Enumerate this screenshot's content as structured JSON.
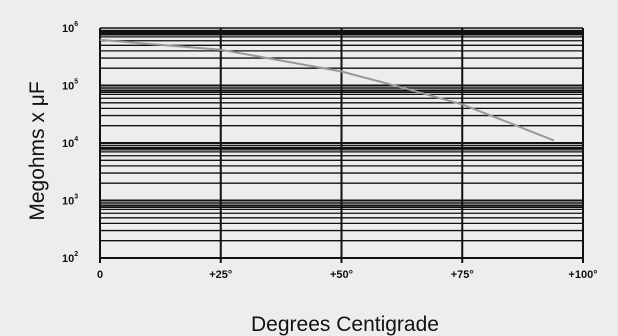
{
  "chart_data": {
    "type": "line",
    "title": "",
    "xlabel": "Degrees Centigrade",
    "ylabel": "Megohms x μF",
    "x_ticks": [
      {
        "value": 0,
        "label": "0"
      },
      {
        "value": 25,
        "label": "+25°"
      },
      {
        "value": 50,
        "label": "+50°"
      },
      {
        "value": 75,
        "label": "+75°"
      },
      {
        "value": 100,
        "label": "+100°"
      }
    ],
    "y_ticks": [
      {
        "value": 100,
        "base": "10",
        "exp": "2"
      },
      {
        "value": 1000,
        "base": "10",
        "exp": "3"
      },
      {
        "value": 10000,
        "base": "10",
        "exp": "4"
      },
      {
        "value": 100000,
        "base": "10",
        "exp": "5"
      },
      {
        "value": 1000000,
        "base": "10",
        "exp": "6"
      }
    ],
    "xlim": [
      0,
      100
    ],
    "ylim": [
      100,
      1000000
    ],
    "y_scale": "log",
    "grid": true,
    "series": [
      {
        "x": [
          0,
          25,
          50,
          62,
          75,
          85,
          94
        ],
        "y": [
          620000,
          420000,
          175000,
          95000,
          47000,
          22000,
          11000
        ]
      }
    ],
    "colors": {
      "line": "#999999",
      "grid": "#111111",
      "background": "#ededed"
    }
  }
}
